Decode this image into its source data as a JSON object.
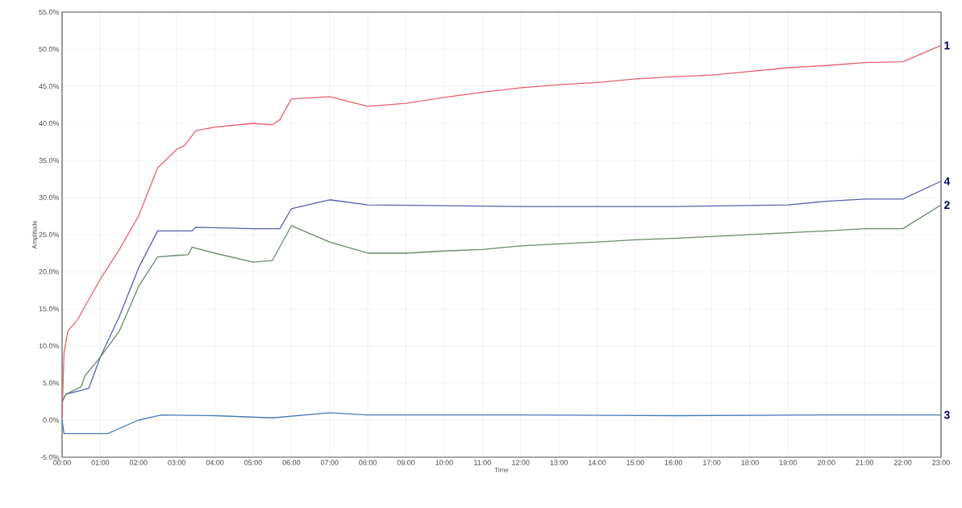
{
  "chart_data": {
    "type": "line",
    "xlabel": "Time",
    "ylabel": "Amplitude",
    "xlim": [
      0,
      23
    ],
    "ylim": [
      -5,
      55
    ],
    "xticks": [
      {
        "value": 0,
        "label": "00:00"
      },
      {
        "value": 1,
        "label": "01:00"
      },
      {
        "value": 2,
        "label": "02:00"
      },
      {
        "value": 3,
        "label": "03:00"
      },
      {
        "value": 4,
        "label": "04:00"
      },
      {
        "value": 5,
        "label": "05:00"
      },
      {
        "value": 6,
        "label": "06:00"
      },
      {
        "value": 7,
        "label": "07:00"
      },
      {
        "value": 8,
        "label": "08:00"
      },
      {
        "value": 9,
        "label": "09:00"
      },
      {
        "value": 10,
        "label": "10:00"
      },
      {
        "value": 11,
        "label": "11:00"
      },
      {
        "value": 12,
        "label": "12:00"
      },
      {
        "value": 13,
        "label": "13:00"
      },
      {
        "value": 14,
        "label": "14:00"
      },
      {
        "value": 15,
        "label": "15:00"
      },
      {
        "value": 16,
        "label": "16:00"
      },
      {
        "value": 17,
        "label": "17:00"
      },
      {
        "value": 18,
        "label": "18:00"
      },
      {
        "value": 19,
        "label": "19:00"
      },
      {
        "value": 20,
        "label": "20:00"
      },
      {
        "value": 21,
        "label": "21:00"
      },
      {
        "value": 22,
        "label": "22:00"
      },
      {
        "value": 23,
        "label": "23:00"
      }
    ],
    "yticks": [
      {
        "value": -5,
        "label": "-5.0%"
      },
      {
        "value": 0,
        "label": "0.0%"
      },
      {
        "value": 5,
        "label": "5.0%"
      },
      {
        "value": 10,
        "label": "10.0%"
      },
      {
        "value": 15,
        "label": "15.0%"
      },
      {
        "value": 20,
        "label": "20.0%"
      },
      {
        "value": 25,
        "label": "25.0%"
      },
      {
        "value": 30,
        "label": "30.0%"
      },
      {
        "value": 35,
        "label": "35.0%"
      },
      {
        "value": 40,
        "label": "40.0%"
      },
      {
        "value": 45,
        "label": "45.0%"
      },
      {
        "value": 50,
        "label": "50.0%"
      },
      {
        "value": 55,
        "label": "55.0%"
      }
    ],
    "grid": true,
    "series": [
      {
        "name": "1",
        "color": "#e8606e",
        "x": [
          0,
          0.05,
          0.15,
          0.4,
          1,
          1.5,
          2,
          2.5,
          3,
          3.2,
          3.5,
          4,
          5,
          5.5,
          5.7,
          6,
          7,
          8,
          9,
          10,
          11,
          12,
          13,
          14,
          15,
          16,
          17,
          18,
          19,
          20,
          21,
          22,
          23
        ],
        "values": [
          0.5,
          9,
          12,
          13.5,
          19,
          23,
          27.5,
          34,
          36.5,
          37,
          39,
          39.5,
          40,
          39.8,
          40.5,
          43.3,
          43.6,
          42.3,
          42.7,
          43.5,
          44.2,
          44.8,
          45.2,
          45.5,
          46,
          46.3,
          46.5,
          47,
          47.5,
          47.8,
          48.2,
          48.3,
          50.5
        ]
      },
      {
        "name": "4",
        "color": "#5a5fb0",
        "x": [
          0,
          0.1,
          0.5,
          0.7,
          1,
          1.5,
          2,
          2.5,
          3,
          3.4,
          3.5,
          5,
          5.7,
          6,
          7,
          8,
          12,
          16,
          19,
          20,
          21,
          22,
          23
        ],
        "values": [
          2.5,
          3.5,
          4,
          4.3,
          8.5,
          14,
          20.5,
          25.5,
          25.5,
          25.5,
          26,
          25.8,
          25.8,
          28.5,
          29.7,
          29,
          28.8,
          28.8,
          29,
          29.5,
          29.8,
          29.8,
          32.2
        ]
      },
      {
        "name": "2",
        "color": "#6a8a6a",
        "x": [
          0,
          0.1,
          0.5,
          0.6,
          1,
          1.5,
          2,
          2.5,
          3,
          3.3,
          3.4,
          4,
          5,
          5.5,
          6,
          7,
          8,
          9,
          10,
          11,
          12,
          14,
          15,
          16,
          18,
          20,
          21,
          22,
          23
        ],
        "values": [
          2.5,
          3.5,
          4.5,
          6,
          8.5,
          12,
          18,
          22,
          22.2,
          22.3,
          23.3,
          22.5,
          21.3,
          21.5,
          26.2,
          24,
          22.5,
          22.5,
          22.8,
          23,
          23.5,
          24,
          24.3,
          24.5,
          25,
          25.5,
          25.8,
          25.8,
          29
        ]
      },
      {
        "name": "3",
        "color": "#4a7ab8",
        "x": [
          0,
          0.05,
          1.2,
          2,
          2.6,
          4,
          5.5,
          7,
          8,
          12,
          16,
          20,
          23
        ],
        "values": [
          0,
          -1.8,
          -1.8,
          0,
          0.7,
          0.6,
          0.3,
          1.0,
          0.7,
          0.7,
          0.6,
          0.7,
          0.7
        ]
      }
    ]
  }
}
